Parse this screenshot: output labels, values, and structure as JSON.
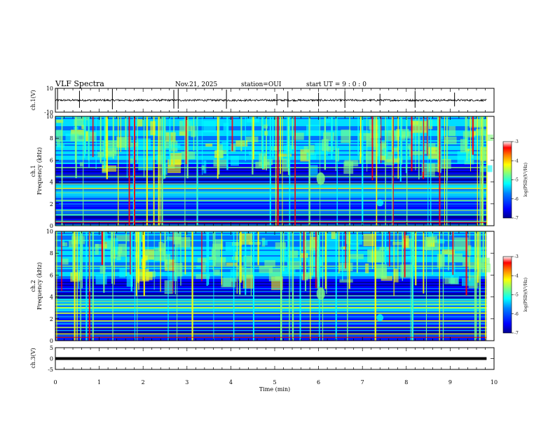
{
  "header": {
    "title": "VLF Spectra",
    "date": "Nov.21, 2025",
    "station": "station=OUI",
    "start": "start UT =  9 : 0 : 0"
  },
  "chart_data": {
    "type": "heatmap",
    "x": {
      "label": "Time (min)",
      "range": [
        0,
        10
      ],
      "ticks": [
        0,
        1,
        2,
        3,
        4,
        5,
        6,
        7,
        8,
        9,
        10
      ],
      "data_end": 9.83
    },
    "panels": [
      {
        "id": "ch1-waveform",
        "ylabel": "ch.1(V)",
        "yrange": [
          -10,
          10
        ],
        "ytick_labels": [
          "10",
          "-10"
        ],
        "kind": "waveform",
        "baseline": 0,
        "spikes": [
          0.05,
          0.55,
          1.3,
          2.7,
          2.8,
          3.9,
          5.05,
          5.3,
          6.0,
          6.6,
          7.4,
          8.2,
          9.1
        ]
      },
      {
        "id": "ch1-spectrogram",
        "ylabel": "ch.1",
        "ylabel2": "Frequency (kHz)",
        "yrange": [
          0,
          10
        ],
        "ytick_labels": [
          "10",
          "8",
          "6",
          "4",
          "2",
          "0"
        ],
        "kind": "spectrogram",
        "bands_khz": [
          0.4,
          1.0,
          1.4,
          2.3,
          3.0,
          3.4,
          3.8,
          4.5,
          5.3
        ]
      },
      {
        "id": "ch2-spectrogram",
        "ylabel": "ch.2",
        "ylabel2": "Frequency (kHz)",
        "yrange": [
          0,
          10
        ],
        "ytick_labels": [
          "10",
          "8",
          "6",
          "4",
          "2",
          "0"
        ],
        "kind": "spectrogram",
        "bands_khz": [
          0.6,
          1.2,
          1.8,
          2.5,
          3.0,
          3.3,
          3.6,
          4.1,
          6.8
        ]
      },
      {
        "id": "ch3-waveform",
        "ylabel": "ch.3(V)",
        "yrange": [
          -5,
          5
        ],
        "ytick_labels": [
          "5",
          "0",
          "-5"
        ],
        "kind": "flatline",
        "baseline": 0
      }
    ],
    "colorbar": {
      "label": "log(PSD)(V²/Hz)",
      "range": [
        -7,
        -3
      ],
      "tick_labels": [
        "-3",
        "-4",
        "-5",
        "-6",
        "-7"
      ],
      "colors": [
        "#00008f",
        "#0000ff",
        "#0080ff",
        "#00ffff",
        "#80ff80",
        "#ffff00",
        "#ff8000",
        "#ff0000",
        "#ffffff"
      ]
    }
  }
}
